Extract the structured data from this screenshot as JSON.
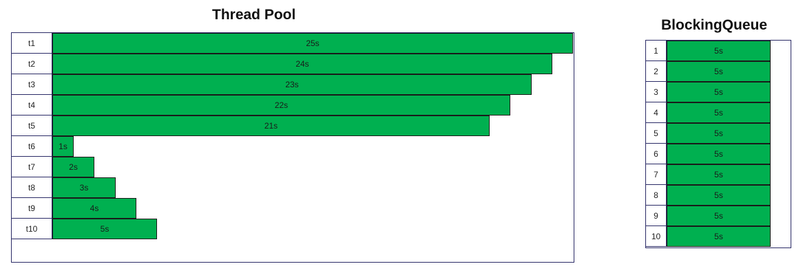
{
  "thread_pool": {
    "title": "Thread Pool",
    "rows": [
      {
        "label": "t1",
        "duration_s": 25,
        "value_label": "25s"
      },
      {
        "label": "t2",
        "duration_s": 24,
        "value_label": "24s"
      },
      {
        "label": "t3",
        "duration_s": 23,
        "value_label": "23s"
      },
      {
        "label": "t4",
        "duration_s": 22,
        "value_label": "22s"
      },
      {
        "label": "t5",
        "duration_s": 21,
        "value_label": "21s"
      },
      {
        "label": "t6",
        "duration_s": 1,
        "value_label": "1s"
      },
      {
        "label": "t7",
        "duration_s": 2,
        "value_label": "2s"
      },
      {
        "label": "t8",
        "duration_s": 3,
        "value_label": "3s"
      },
      {
        "label": "t9",
        "duration_s": 4,
        "value_label": "4s"
      },
      {
        "label": "t10",
        "duration_s": 5,
        "value_label": "5s"
      }
    ]
  },
  "blocking_queue": {
    "title": "BlockingQueue",
    "rows": [
      {
        "label": "1",
        "duration_s": 5,
        "value_label": "5s"
      },
      {
        "label": "2",
        "duration_s": 5,
        "value_label": "5s"
      },
      {
        "label": "3",
        "duration_s": 5,
        "value_label": "5s"
      },
      {
        "label": "4",
        "duration_s": 5,
        "value_label": "5s"
      },
      {
        "label": "5",
        "duration_s": 5,
        "value_label": "5s"
      },
      {
        "label": "6",
        "duration_s": 5,
        "value_label": "5s"
      },
      {
        "label": "7",
        "duration_s": 5,
        "value_label": "5s"
      },
      {
        "label": "8",
        "duration_s": 5,
        "value_label": "5s"
      },
      {
        "label": "9",
        "duration_s": 5,
        "value_label": "5s"
      },
      {
        "label": "10",
        "duration_s": 5,
        "value_label": "5s"
      }
    ]
  },
  "colors": {
    "bar_fill": "#00b050",
    "frame_border": "#2b2b66"
  }
}
